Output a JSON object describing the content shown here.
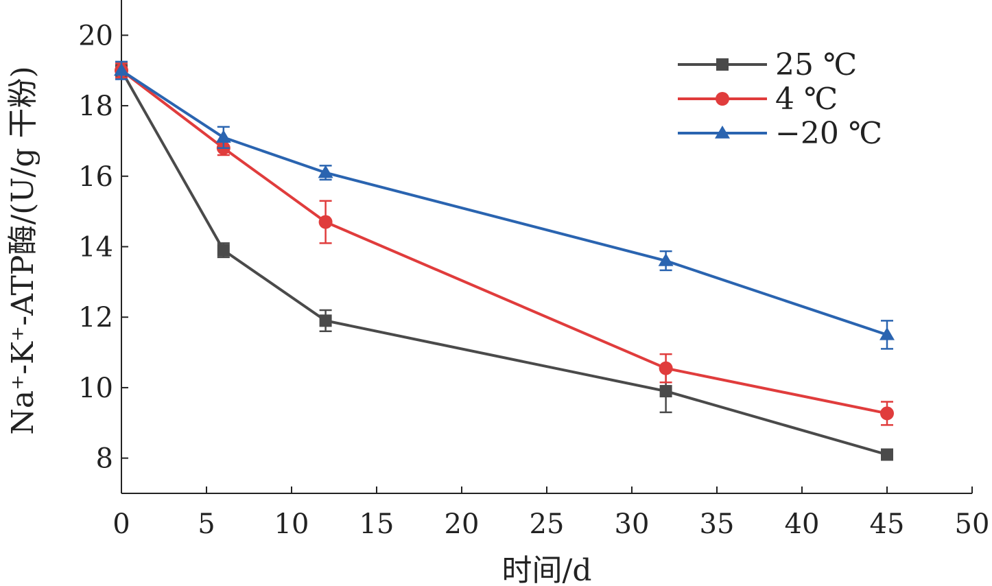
{
  "chart_data": {
    "type": "line",
    "xlabel": "时间/d",
    "ylabel": "Na⁺-K⁺-ATP酶/(U/g 干粉)",
    "xlim": [
      0,
      50
    ],
    "ylim": [
      7,
      21
    ],
    "x_ticks": [
      "0",
      "5",
      "10",
      "15",
      "20",
      "25",
      "30",
      "35",
      "40",
      "45",
      "50"
    ],
    "y_ticks": [
      "8",
      "10",
      "12",
      "14",
      "16",
      "18",
      "20"
    ],
    "grid": false,
    "legend_position": "top-right",
    "x": [
      0,
      6,
      12,
      32,
      45
    ],
    "series": [
      {
        "name": "25 ℃",
        "color": "#4a4a4a",
        "marker": "square",
        "values": [
          19.0,
          13.9,
          11.9,
          9.9,
          8.1
        ],
        "errors": [
          0.2,
          0.2,
          0.3,
          0.6,
          0.15
        ]
      },
      {
        "name": "4 ℃",
        "color": "#e03c3c",
        "marker": "circle",
        "values": [
          19.0,
          16.8,
          14.7,
          10.55,
          9.27
        ],
        "errors": [
          0.2,
          0.2,
          0.6,
          0.4,
          0.33
        ]
      },
      {
        "name": "−20 ℃",
        "color": "#2a64b0",
        "marker": "triangle",
        "values": [
          19.0,
          17.1,
          16.1,
          13.6,
          11.5
        ],
        "errors": [
          0.25,
          0.3,
          0.2,
          0.27,
          0.4
        ]
      }
    ]
  }
}
